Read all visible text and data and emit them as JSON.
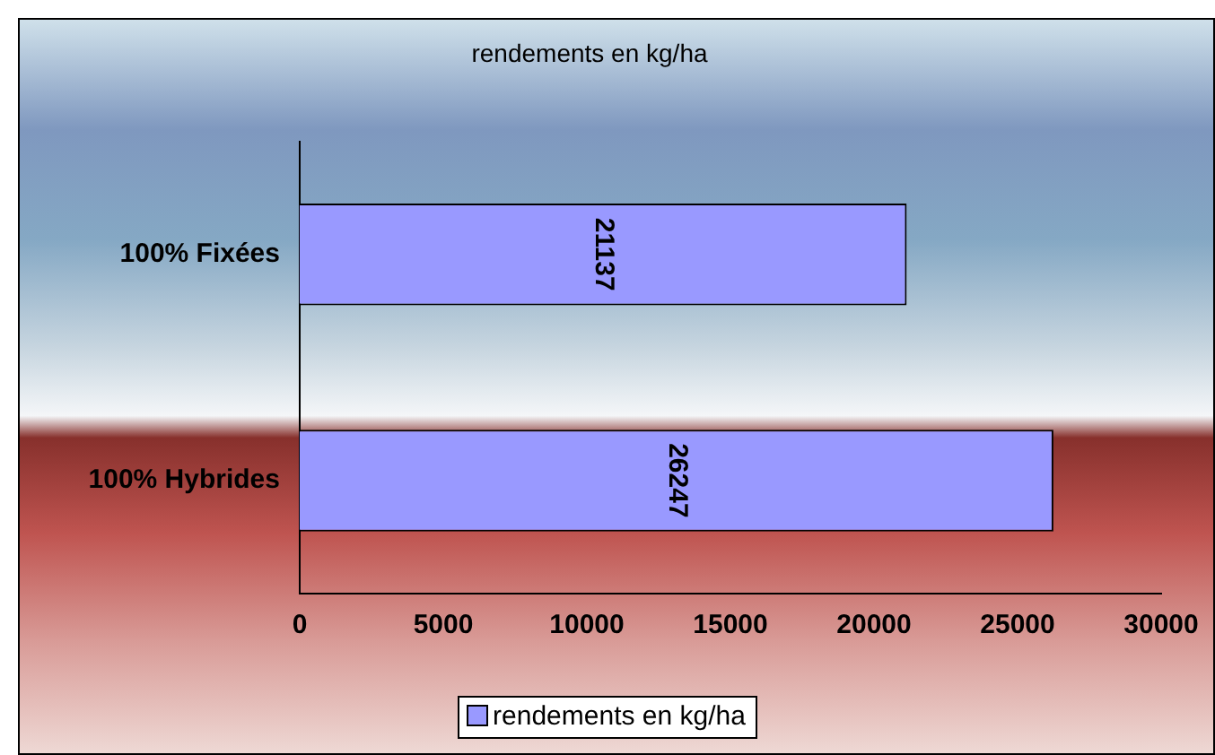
{
  "chart_data": {
    "type": "bar",
    "orientation": "horizontal",
    "title": "rendements en kg/ha",
    "categories": [
      "100% Fixées",
      "100% Hybrides"
    ],
    "series": [
      {
        "name": "rendements en kg/ha",
        "color": "#9999ff",
        "values": [
          21137,
          26247
        ]
      }
    ],
    "xlim": [
      0,
      30000
    ],
    "xticks": [
      0,
      5000,
      10000,
      15000,
      20000,
      25000,
      30000
    ],
    "data_labels": true,
    "grid": false,
    "legend": "bottom"
  }
}
